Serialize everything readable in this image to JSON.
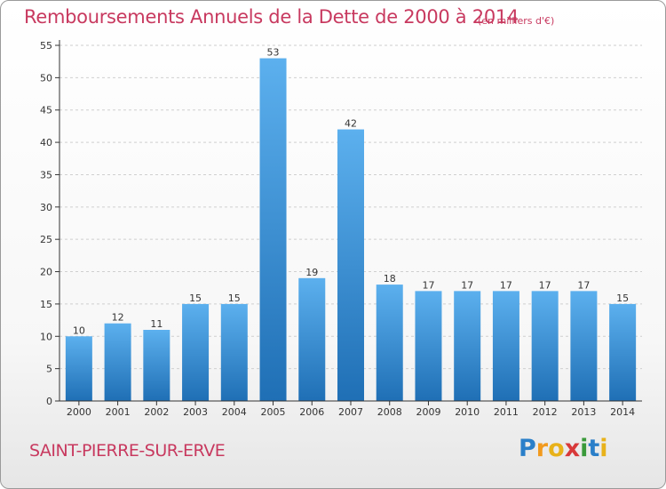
{
  "title": "Remboursements Annuels de la Dette de 2000 à 2014",
  "subtitle": "(en milliers d'€)",
  "commune": "SAINT-PIERRE-SUR-ERVE",
  "brand": {
    "text": "Proxiti",
    "letter_colors": [
      "#2a7fc9",
      "#f29a1d",
      "#e8b21a",
      "#d8393a",
      "#3a9a3a",
      "#2a7fc9",
      "#e8b21a"
    ]
  },
  "colors": {
    "accent": "#c8395f",
    "bar_top": "#5cb0ee",
    "bar_bottom": "#1f6fb5",
    "axis": "#333333",
    "grid": "#cfcfcf"
  },
  "chart_data": {
    "type": "bar",
    "title": "Remboursements Annuels de la Dette de 2000 à 2014",
    "subtitle": "(en milliers d'€)",
    "xlabel": "",
    "ylabel": "",
    "categories": [
      "2000",
      "2001",
      "2002",
      "2003",
      "2004",
      "2005",
      "2006",
      "2007",
      "2008",
      "2009",
      "2010",
      "2011",
      "2012",
      "2013",
      "2014"
    ],
    "values": [
      10,
      12,
      11,
      15,
      15,
      53,
      19,
      42,
      18,
      17,
      17,
      17,
      17,
      17,
      15
    ],
    "ylim": [
      0,
      55
    ],
    "yticks": [
      0,
      5,
      10,
      15,
      20,
      25,
      30,
      35,
      40,
      45,
      50,
      55
    ],
    "grid": true,
    "data_labels": true
  }
}
